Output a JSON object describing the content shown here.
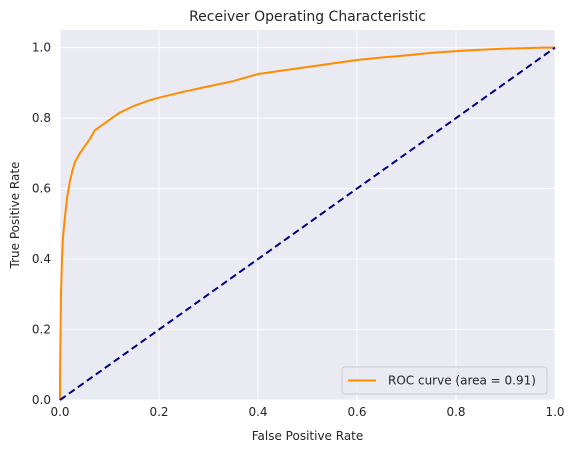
{
  "chart_data": {
    "type": "line",
    "title": "Receiver Operating Characteristic",
    "xlabel": "False Positive Rate",
    "ylabel": "True Positive Rate",
    "xlim": [
      0.0,
      1.0
    ],
    "ylim": [
      0.0,
      1.05
    ],
    "xticks": [
      "0.0",
      "0.2",
      "0.4",
      "0.6",
      "0.8",
      "1.0"
    ],
    "yticks": [
      "0.0",
      "0.2",
      "0.4",
      "0.6",
      "0.8",
      "1.0"
    ],
    "xtick_values": [
      0.0,
      0.2,
      0.4,
      0.6,
      0.8,
      1.0
    ],
    "ytick_values": [
      0.0,
      0.2,
      0.4,
      0.6,
      0.8,
      1.0
    ],
    "grid": true,
    "legend_position": "lower-right",
    "background_color": "#eaeaf2",
    "series": [
      {
        "name": "ROC curve (area = 0.91)",
        "color": "#ff8c00",
        "style": "solid",
        "x": [
          0.0,
          0.0,
          0.002,
          0.004,
          0.006,
          0.01,
          0.015,
          0.02,
          0.025,
          0.03,
          0.04,
          0.05,
          0.06,
          0.07,
          0.08,
          0.1,
          0.12,
          0.15,
          0.18,
          0.2,
          0.25,
          0.3,
          0.35,
          0.4,
          0.45,
          0.5,
          0.55,
          0.6,
          0.65,
          0.7,
          0.75,
          0.8,
          0.85,
          0.9,
          0.95,
          0.98,
          1.0
        ],
        "y": [
          0.0,
          0.06,
          0.3,
          0.4,
          0.46,
          0.52,
          0.58,
          0.62,
          0.65,
          0.675,
          0.7,
          0.72,
          0.74,
          0.765,
          0.775,
          0.795,
          0.815,
          0.835,
          0.85,
          0.858,
          0.875,
          0.89,
          0.905,
          0.925,
          0.935,
          0.945,
          0.955,
          0.965,
          0.972,
          0.978,
          0.985,
          0.99,
          0.994,
          0.997,
          0.999,
          1.0,
          1.0
        ]
      },
      {
        "name": "",
        "color": "#000080",
        "style": "dashed",
        "x": [
          0.0,
          1.0
        ],
        "y": [
          0.0,
          1.0
        ]
      }
    ]
  }
}
